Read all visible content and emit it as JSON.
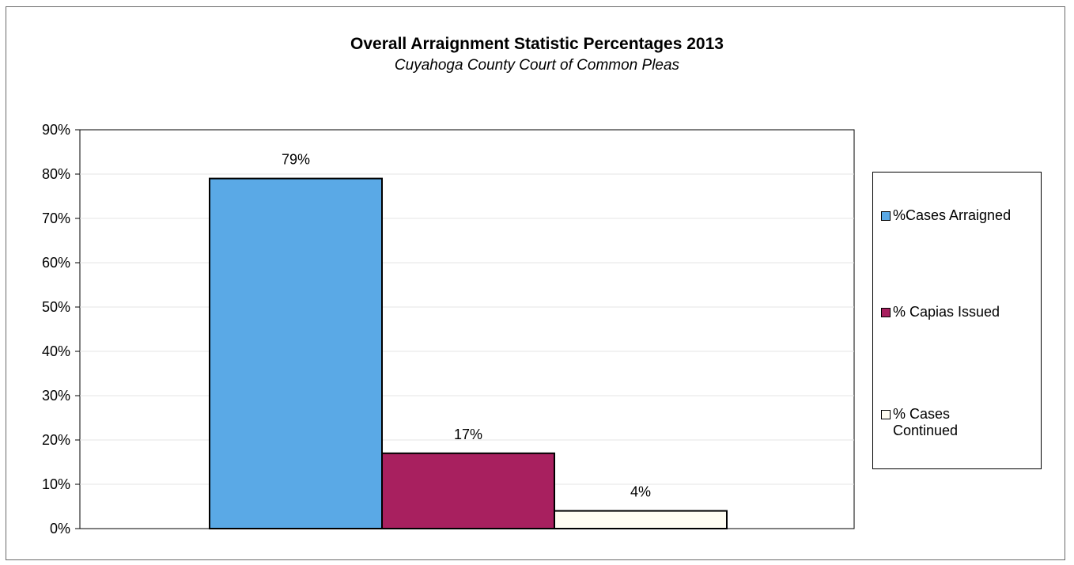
{
  "chart_data": {
    "type": "bar",
    "title": "Overall Arraignment  Statistic Percentages 2013",
    "subtitle": "Cuyahoga County Court of Common Pleas",
    "xlabel": "",
    "ylabel": "",
    "ylim": [
      0,
      90
    ],
    "yticks": [
      "0%",
      "10%",
      "20%",
      "30%",
      "40%",
      "50%",
      "60%",
      "70%",
      "80%",
      "90%"
    ],
    "grid": true,
    "legend_position": "right",
    "series": [
      {
        "name": "%Cases Arraigned",
        "value": 79,
        "label": "79%",
        "color": "#5aa9e6"
      },
      {
        "name": "% Capias Issued",
        "value": 17,
        "label": "17%",
        "color": "#a8205f"
      },
      {
        "name": "% Cases Continued",
        "value": 4,
        "label": "4%",
        "color": "#fffdf2"
      }
    ]
  }
}
